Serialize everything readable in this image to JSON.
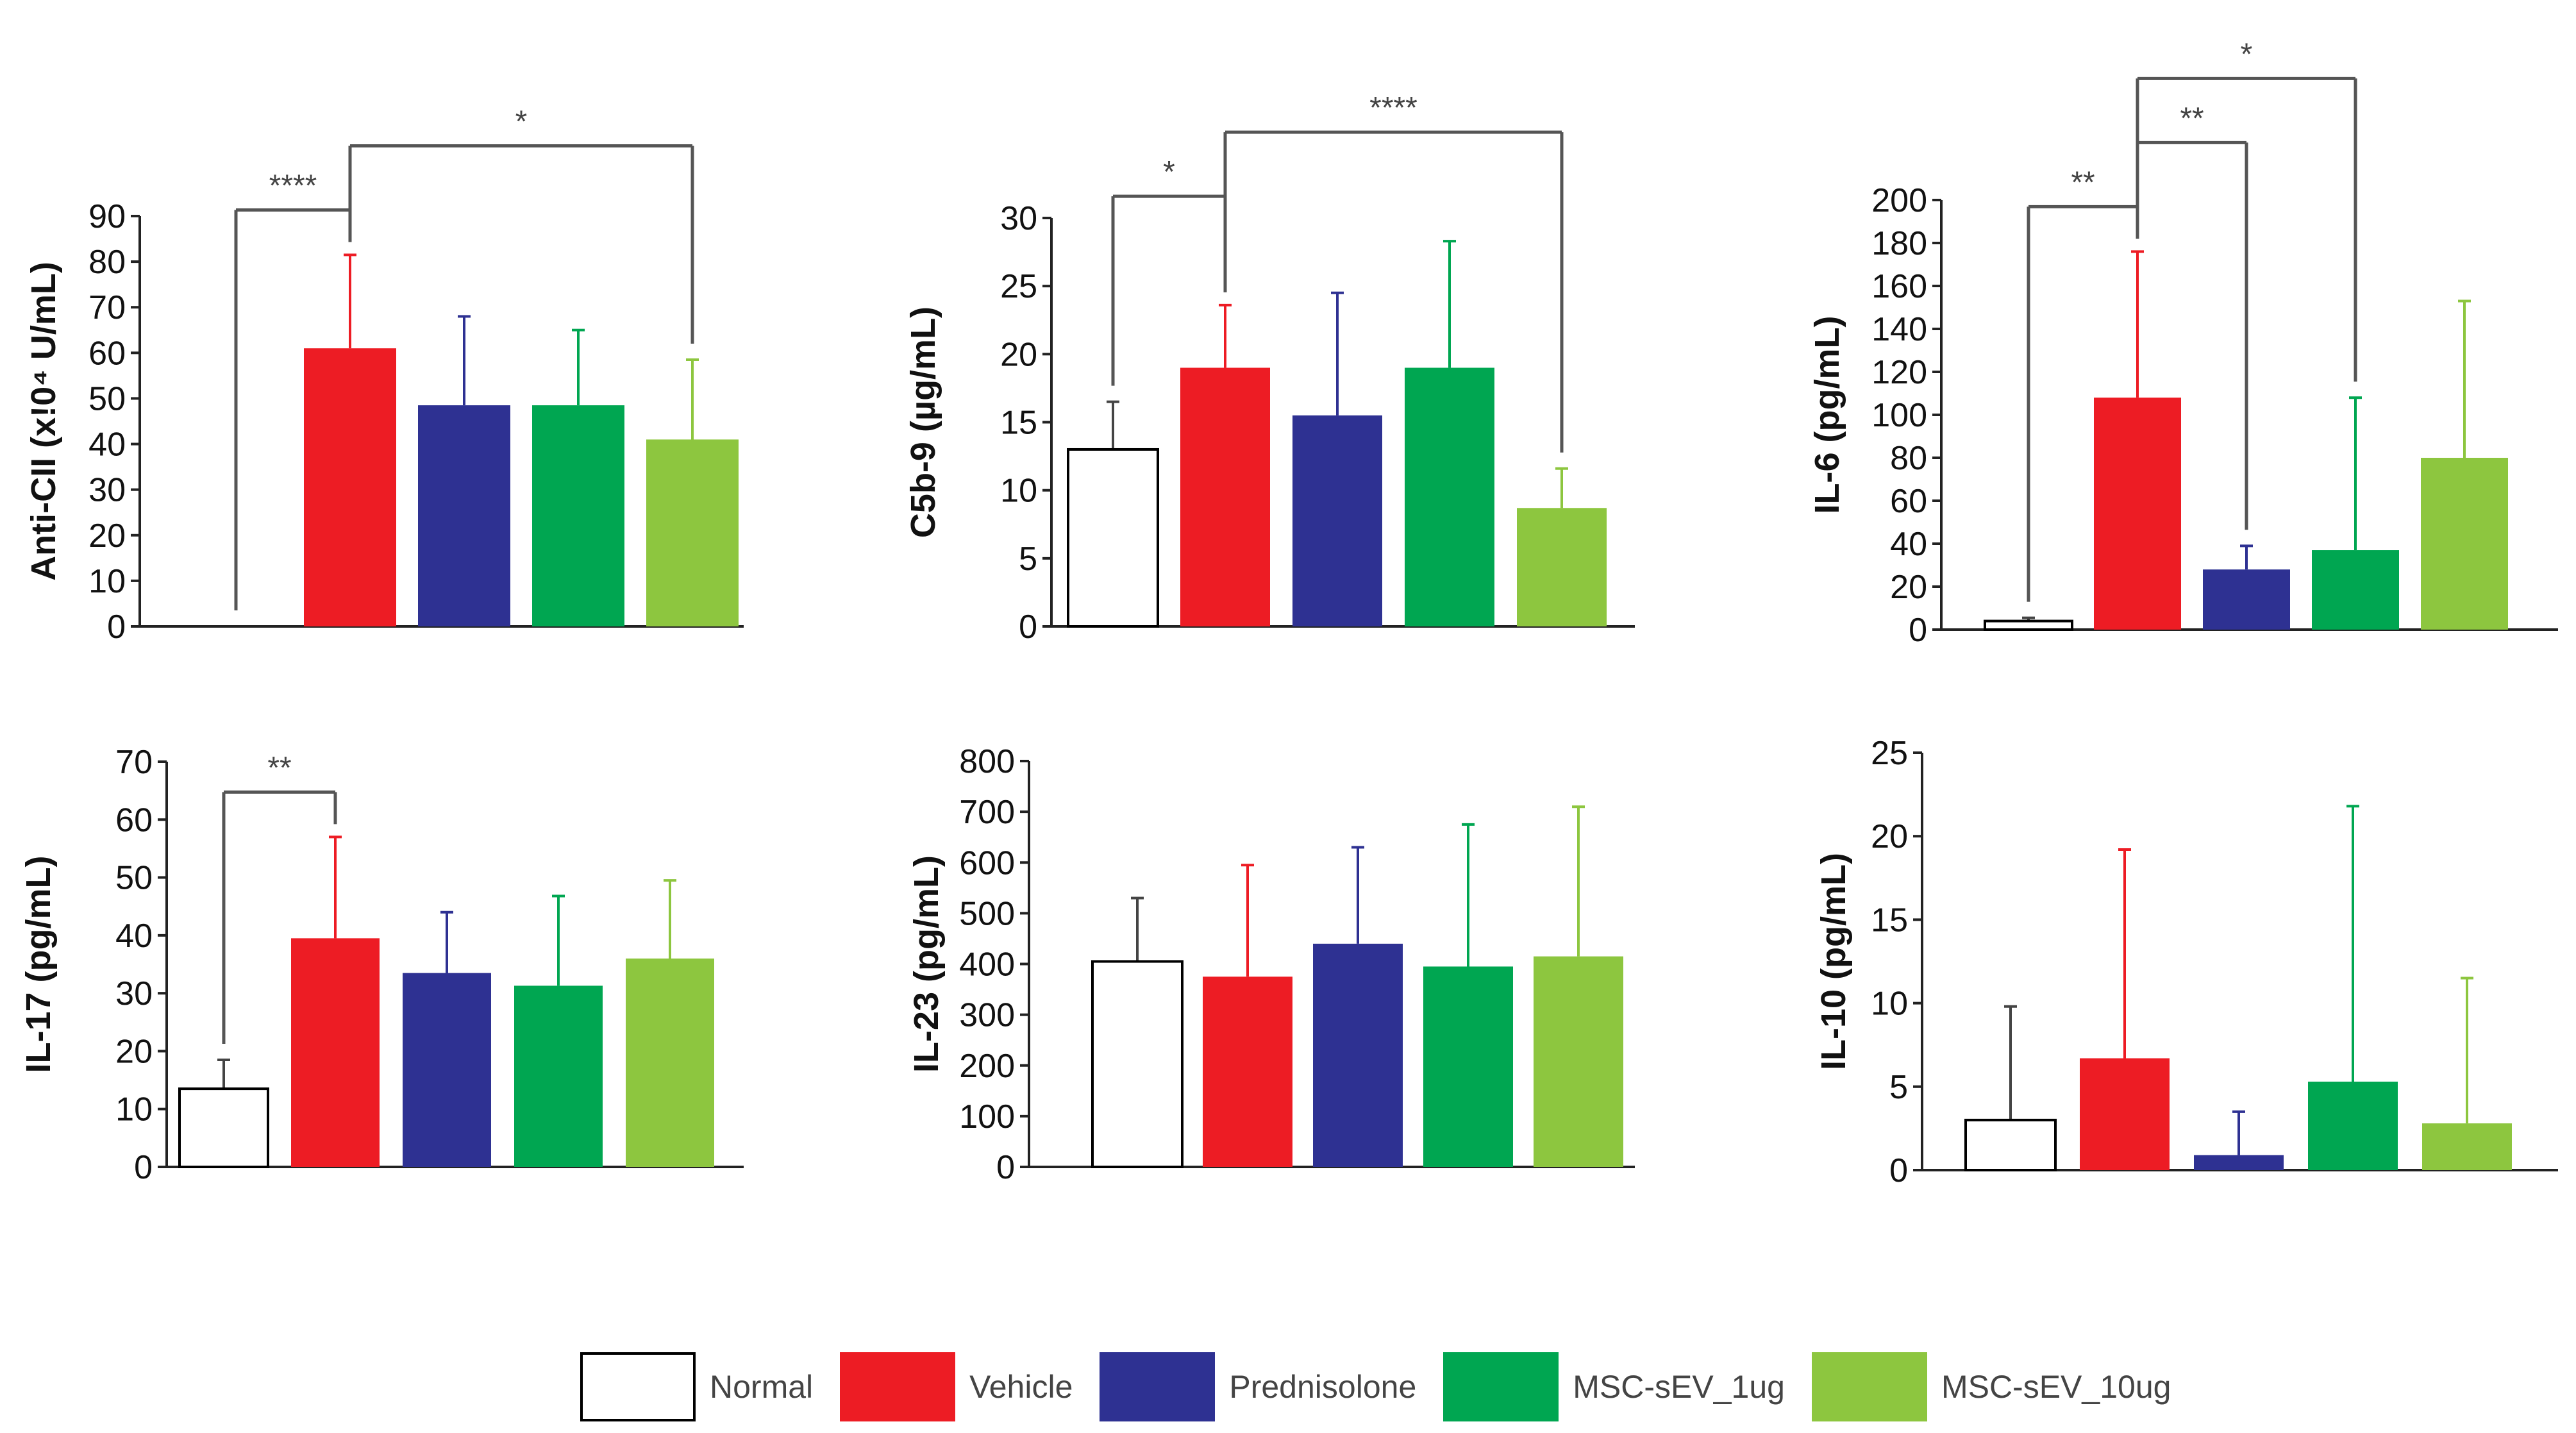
{
  "groups": [
    "Normal",
    "Vehicle",
    "Prednisolone",
    "MSC-sEV_1ug",
    "MSC-sEV_10ug"
  ],
  "colors": {
    "Normal": "#ffffff",
    "Vehicle": "#ed1c24",
    "Prednisolone": "#2e3192",
    "MSC-sEV_1ug": "#00a651",
    "MSC-sEV_10ug": "#8dc63f",
    "axis": "#222222",
    "bracket": "#555555"
  },
  "chart_data": [
    {
      "type": "bar",
      "ylabel": "Anti-CII (x!0⁴ U/mL)",
      "categories": [
        "Normal",
        "Vehicle",
        "Prednisolone",
        "MSC-sEV_1ug",
        "MSC-sEV_10ug"
      ],
      "values": [
        0,
        61,
        48.5,
        48.5,
        41
      ],
      "error": [
        0,
        20.5,
        19.5,
        16.5,
        17.5
      ],
      "ylim": [
        0,
        90
      ],
      "yticks": [
        0,
        10,
        20,
        30,
        40,
        50,
        60,
        70,
        80,
        90
      ],
      "significance": [
        {
          "from": "Vehicle",
          "to": "Normal",
          "label": "****"
        },
        {
          "from": "Vehicle",
          "to": "MSC-sEV_10ug",
          "label": "*"
        }
      ]
    },
    {
      "type": "bar",
      "ylabel": "C5b-9 (µg/mL)",
      "categories": [
        "Normal",
        "Vehicle",
        "Prednisolone",
        "MSC-sEV_1ug",
        "MSC-sEV_10ug"
      ],
      "values": [
        13,
        19,
        15.5,
        19,
        8.7
      ],
      "error": [
        3.5,
        4.6,
        9,
        9.3,
        2.9
      ],
      "ylim": [
        0,
        30
      ],
      "yticks": [
        0,
        5,
        10,
        15,
        20,
        25,
        30
      ],
      "significance": [
        {
          "from": "Vehicle",
          "to": "Normal",
          "label": "*"
        },
        {
          "from": "Vehicle",
          "to": "MSC-sEV_10ug",
          "label": "****"
        }
      ]
    },
    {
      "type": "bar",
      "ylabel": "IL-6 (pg/mL)",
      "categories": [
        "Normal",
        "Vehicle",
        "Prednisolone",
        "MSC-sEV_1ug",
        "MSC-sEV_10ug"
      ],
      "values": [
        4,
        108,
        28,
        37,
        80
      ],
      "error": [
        1.5,
        68,
        11,
        71,
        73
      ],
      "ylim": [
        0,
        200
      ],
      "yticks": [
        0,
        20,
        40,
        60,
        80,
        100,
        120,
        140,
        160,
        180,
        200
      ],
      "significance": [
        {
          "from": "Vehicle",
          "to": "Normal",
          "label": "**"
        },
        {
          "from": "Vehicle",
          "to": "Prednisolone",
          "label": "**"
        },
        {
          "from": "Vehicle",
          "to": "MSC-sEV_1ug",
          "label": "*"
        }
      ]
    },
    {
      "type": "bar",
      "ylabel": "IL-17 (pg/mL)",
      "categories": [
        "Normal",
        "Vehicle",
        "Prednisolone",
        "MSC-sEV_1ug",
        "MSC-sEV_10ug"
      ],
      "values": [
        13.5,
        39.5,
        33.5,
        31.3,
        36
      ],
      "error": [
        5,
        17.5,
        10.5,
        15.5,
        13.5
      ],
      "ylim": [
        0,
        70
      ],
      "yticks": [
        0,
        10,
        20,
        30,
        40,
        50,
        60,
        70
      ],
      "significance": [
        {
          "from": "Vehicle",
          "to": "Normal",
          "label": "**"
        }
      ]
    },
    {
      "type": "bar",
      "ylabel": "IL-23 (pg/mL)",
      "categories": [
        "Normal",
        "Vehicle",
        "Prednisolone",
        "MSC-sEV_1ug",
        "MSC-sEV_10ug"
      ],
      "values": [
        405,
        375,
        440,
        395,
        415
      ],
      "error": [
        125,
        220,
        190,
        280,
        295
      ],
      "ylim": [
        0,
        800
      ],
      "yticks": [
        0,
        100,
        200,
        300,
        400,
        500,
        600,
        700,
        800
      ],
      "significance": []
    },
    {
      "type": "bar",
      "ylabel": "IL-10 (pg/mL)",
      "categories": [
        "Normal",
        "Vehicle",
        "Prednisolone",
        "MSC-sEV_1ug",
        "MSC-sEV_10ug"
      ],
      "values": [
        3,
        6.7,
        0.9,
        5.3,
        2.8
      ],
      "error": [
        6.8,
        12.5,
        2.6,
        16.5,
        8.7
      ],
      "ylim": [
        0,
        25
      ],
      "yticks": [
        0,
        5,
        10,
        15,
        20,
        25
      ],
      "significance": []
    }
  ]
}
